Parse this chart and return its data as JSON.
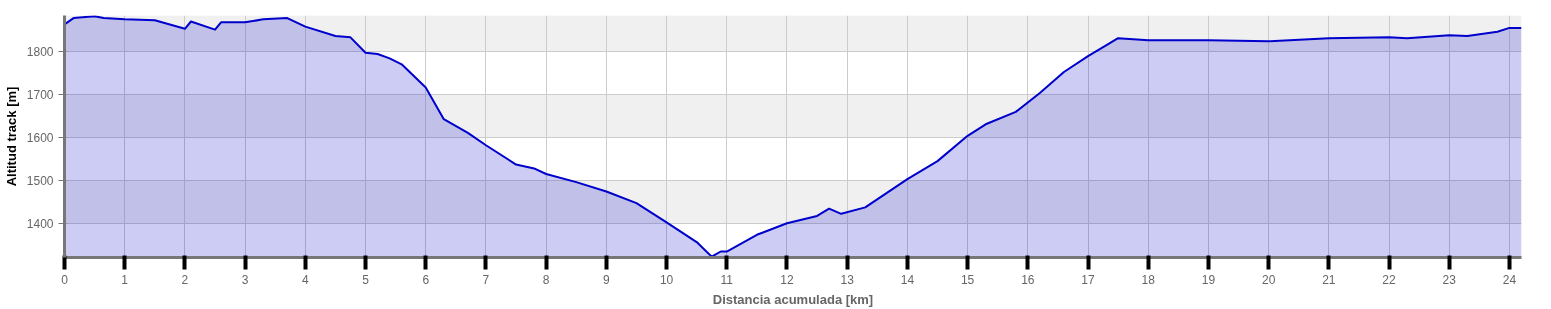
{
  "chart_data": {
    "type": "area",
    "xlabel": "Distancia acumulada [km]",
    "ylabel": "Altitud track [m]",
    "xlim": [
      0,
      24.2
    ],
    "ylim": [
      1320,
      1885
    ],
    "xticks": [
      0,
      1,
      2,
      3,
      4,
      5,
      6,
      7,
      8,
      9,
      10,
      11,
      12,
      13,
      14,
      15,
      16,
      17,
      18,
      19,
      20,
      21,
      22,
      23,
      24
    ],
    "yticks": [
      1400,
      1500,
      1600,
      1700,
      1800
    ],
    "grid": true,
    "x": [
      0,
      0.15,
      0.5,
      0.65,
      1.0,
      1.5,
      2.0,
      2.1,
      2.5,
      2.6,
      3.0,
      3.3,
      3.7,
      4.0,
      4.5,
      4.75,
      5.0,
      5.2,
      5.4,
      5.6,
      6.0,
      6.3,
      6.7,
      7.0,
      7.5,
      7.8,
      8.0,
      8.5,
      9.0,
      9.5,
      10.0,
      10.5,
      10.75,
      10.9,
      11.0,
      11.5,
      12.0,
      12.5,
      12.7,
      12.9,
      13.3,
      14.0,
      14.5,
      15.0,
      15.3,
      15.8,
      16.2,
      16.6,
      17.0,
      17.3,
      17.5,
      18.0,
      19.0,
      20.0,
      21.0,
      22.0,
      22.3,
      23.0,
      23.3,
      23.8,
      24.0,
      24.2
    ],
    "series": [
      {
        "color": "#0000cc",
        "values": [
          1864,
          1879,
          1883,
          1879,
          1876,
          1874,
          1854,
          1871,
          1852,
          1869,
          1869,
          1876,
          1879,
          1859,
          1837,
          1834,
          1798,
          1795,
          1785,
          1771,
          1717,
          1643,
          1611,
          1582,
          1537,
          1528,
          1515,
          1496,
          1474,
          1447,
          1402,
          1356,
          1322,
          1334,
          1334,
          1373,
          1400,
          1417,
          1434,
          1422,
          1437,
          1503,
          1545,
          1604,
          1631,
          1660,
          1704,
          1753,
          1790,
          1815,
          1832,
          1827,
          1827,
          1825,
          1832,
          1834,
          1832,
          1839,
          1837,
          1847,
          1856,
          1856
        ]
      }
    ]
  }
}
